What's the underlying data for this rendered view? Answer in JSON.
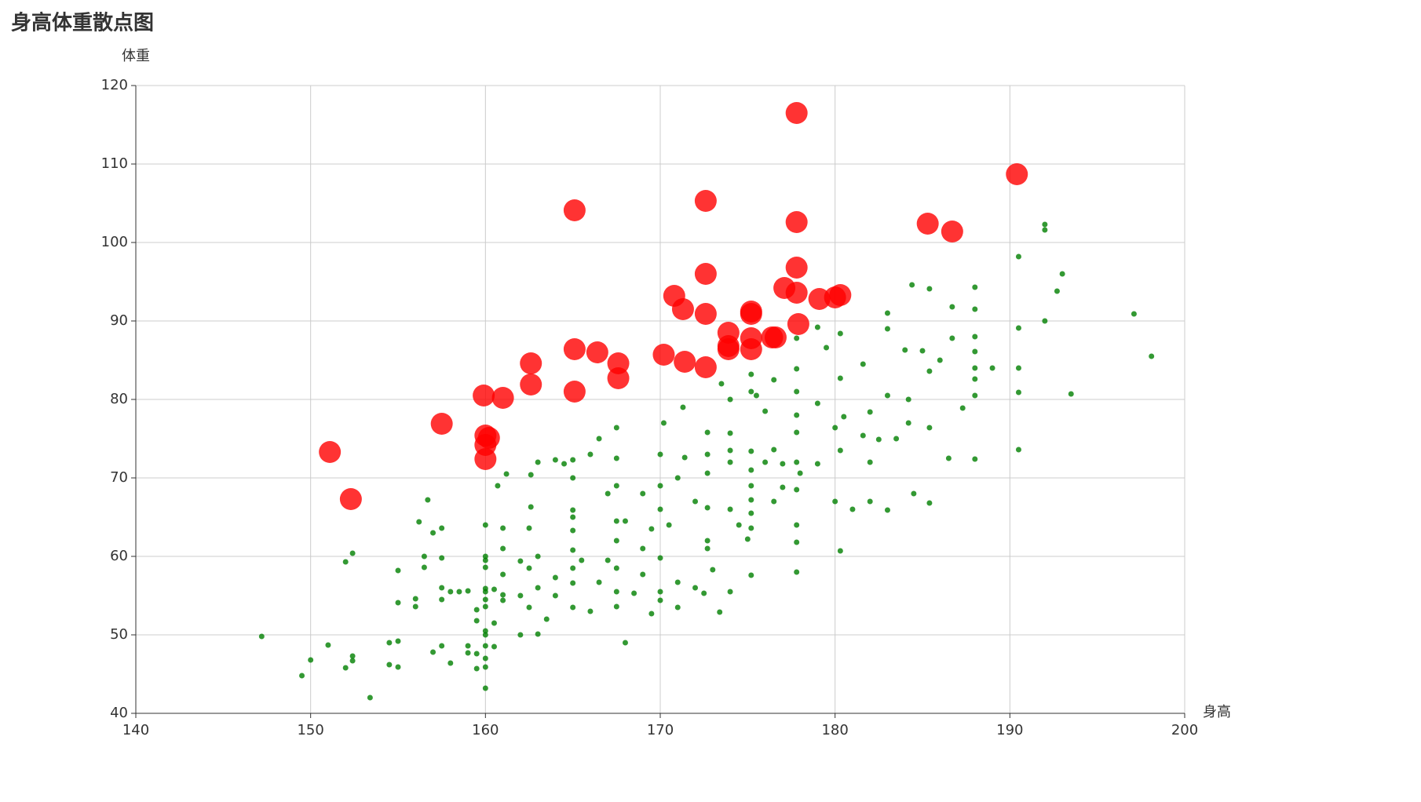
{
  "chart_data": {
    "type": "scatter",
    "title": "身高体重散点图",
    "x_label": "身高",
    "y_label": "体重",
    "xlim": [
      140,
      200
    ],
    "xticks": [
      140,
      150,
      160,
      170,
      180,
      190,
      200
    ],
    "ylim": [
      40,
      120
    ],
    "yticks": [
      40,
      50,
      60,
      70,
      80,
      90,
      100,
      110,
      120
    ],
    "grid": true,
    "series": [
      {
        "color": "#ff0000",
        "x": [
          151.1,
          152.3,
          157.5,
          159.9,
          160.0,
          160.2,
          160.0,
          160.0,
          161.0,
          162.6,
          162.6,
          165.1,
          165.1,
          165.1,
          166.4,
          167.6,
          167.6,
          170.2,
          170.8,
          171.3,
          171.4,
          172.6,
          172.6,
          172.6,
          172.6,
          173.9,
          173.9,
          173.9,
          175.2,
          175.2,
          175.2,
          175.2,
          176.4,
          176.6,
          177.1,
          177.8,
          177.8,
          177.8,
          177.8,
          177.9,
          179.1,
          180.0,
          180.3,
          185.3,
          186.7,
          190.4
        ],
        "values": [
          73.3,
          67.3,
          76.9,
          80.5,
          75.4,
          75.1,
          74.2,
          72.4,
          80.2,
          84.6,
          81.9,
          104.1,
          86.4,
          81.0,
          86.0,
          84.6,
          82.7,
          85.7,
          93.2,
          91.5,
          84.8,
          105.3,
          96.0,
          90.9,
          84.1,
          88.5,
          86.8,
          86.4,
          91.2,
          90.9,
          87.8,
          86.4,
          87.9,
          87.9,
          94.2,
          116.5,
          102.6,
          96.8,
          93.6,
          89.6,
          92.8,
          93.0,
          93.3,
          102.4,
          101.4,
          108.7
        ]
      },
      {
        "color": "#008000",
        "x": [
          147.2,
          149.5,
          150,
          151,
          152,
          152,
          152.4,
          152.4,
          152.4,
          153.4,
          154.5,
          154.5,
          155,
          155,
          155,
          155,
          156,
          156,
          156.2,
          156.5,
          156.5,
          156.7,
          157,
          157,
          157.5,
          157.5,
          157.5,
          157.5,
          157.5,
          158,
          158,
          158.5,
          159,
          159,
          159,
          159.5,
          159.5,
          159.5,
          159.5,
          160,
          160,
          160,
          160,
          160,
          160,
          160,
          160,
          160,
          160,
          160,
          160,
          160,
          160,
          160.5,
          160.5,
          160.5,
          160.7,
          161,
          161,
          161,
          161,
          161,
          161.2,
          162,
          162,
          162,
          162.5,
          162.5,
          162.5,
          162.6,
          162.6,
          163,
          163,
          163,
          163,
          163.5,
          164,
          164,
          164,
          164.5,
          165,
          165,
          165,
          165,
          165,
          165,
          165,
          165,
          165,
          165.5,
          166,
          166,
          166.5,
          166.5,
          167,
          167,
          167.5,
          167.5,
          167.5,
          167.5,
          167.5,
          167.5,
          167.5,
          167.5,
          168,
          168,
          168.5,
          169,
          169,
          169,
          169.5,
          169.5,
          170,
          170,
          170,
          170,
          170,
          170,
          170.2,
          170.5,
          171,
          171,
          171,
          171.3,
          171.4,
          172,
          172,
          172.5,
          172.7,
          172.7,
          172.7,
          172.7,
          172.7,
          172.7,
          173,
          173.4,
          173.5,
          174,
          174,
          174,
          174,
          174,
          174,
          174.5,
          175,
          175.2,
          175.2,
          175.2,
          175.2,
          175.2,
          175.2,
          175.2,
          175.2,
          175.2,
          175.5,
          176,
          176,
          176.5,
          176.5,
          176.5,
          177,
          177,
          177.8,
          177.8,
          177.8,
          177.8,
          177.8,
          177.8,
          177.8,
          177.8,
          177.8,
          177.8,
          178,
          179,
          179,
          179,
          179.5,
          180,
          180,
          180.3,
          180.3,
          180.3,
          180.3,
          180.5,
          181,
          181.6,
          181.6,
          182,
          182,
          182,
          182.5,
          183,
          183,
          183,
          183,
          183.5,
          184,
          184.2,
          184.2,
          184.4,
          184.5,
          185,
          185.4,
          185.4,
          185.4,
          185.4,
          186,
          186.5,
          186.7,
          186.7,
          187.3,
          188,
          188,
          188,
          188,
          188,
          188,
          188,
          188,
          189,
          190.5,
          190.5,
          190.5,
          190.5,
          190.5,
          192,
          192,
          192,
          192.7,
          193,
          193.5,
          197.1,
          198.1
        ],
        "values": [
          49.8,
          44.8,
          46.8,
          48.7,
          45.8,
          59.3,
          60.4,
          46.7,
          47.3,
          42,
          46.2,
          49,
          54.1,
          58.2,
          49.2,
          45.9,
          54.6,
          53.6,
          64.4,
          60,
          58.6,
          67.2,
          47.8,
          63,
          63.6,
          54.5,
          59.8,
          56,
          48.6,
          55.5,
          46.4,
          55.5,
          55.6,
          47.7,
          48.6,
          51.8,
          53.2,
          47.6,
          45.7,
          60,
          59.5,
          58.6,
          55.9,
          55.5,
          54.5,
          53.6,
          50.5,
          50,
          48.6,
          47,
          45.9,
          43.2,
          64,
          51.5,
          55.8,
          48.5,
          69,
          54.4,
          55.1,
          63.6,
          61,
          57.7,
          70.5,
          50,
          55,
          59.4,
          63.6,
          58.5,
          53.5,
          66.3,
          70.4,
          50.1,
          56,
          60,
          72,
          52,
          72.3,
          57.3,
          55,
          71.8,
          63.3,
          60.8,
          58.5,
          56.6,
          53.5,
          65,
          65.9,
          70,
          72.3,
          59.5,
          73,
          53,
          56.7,
          75,
          68,
          59.5,
          76.4,
          72.5,
          69,
          64.5,
          62,
          58.5,
          55.5,
          53.6,
          49,
          64.5,
          55.3,
          61,
          57.7,
          68,
          63.5,
          52.7,
          73,
          69,
          66,
          59.8,
          55.5,
          54.4,
          77,
          64,
          56.7,
          70,
          53.5,
          79,
          72.6,
          56,
          67,
          55.3,
          75.8,
          73,
          70.6,
          66.2,
          62,
          61,
          58.3,
          52.9,
          82,
          80,
          75.7,
          73.5,
          72,
          66,
          55.5,
          64,
          62.2,
          83.2,
          81,
          73.4,
          71,
          69,
          67.2,
          65.5,
          63.6,
          57.6,
          80.5,
          78.5,
          72,
          82.5,
          73.6,
          67,
          71.8,
          68.8,
          87.8,
          83.9,
          81,
          78,
          75.8,
          72,
          68.5,
          64,
          61.8,
          58,
          70.6,
          89.2,
          79.5,
          71.8,
          86.6,
          67,
          76.4,
          88.4,
          82.7,
          73.5,
          60.7,
          77.8,
          66,
          84.5,
          75.4,
          78.4,
          72,
          67,
          74.9,
          91,
          89,
          80.5,
          65.9,
          75,
          86.3,
          80,
          77,
          94.6,
          68,
          86.2,
          94.1,
          83.6,
          76.4,
          66.8,
          85,
          72.5,
          91.8,
          87.8,
          78.9,
          94.3,
          91.5,
          88,
          86.1,
          84,
          82.6,
          80.5,
          72.4,
          84,
          98.2,
          89.1,
          84,
          80.9,
          73.6,
          102.3,
          101.6,
          90,
          93.8,
          96,
          80.7,
          90.9,
          85.5
        ]
      }
    ]
  }
}
